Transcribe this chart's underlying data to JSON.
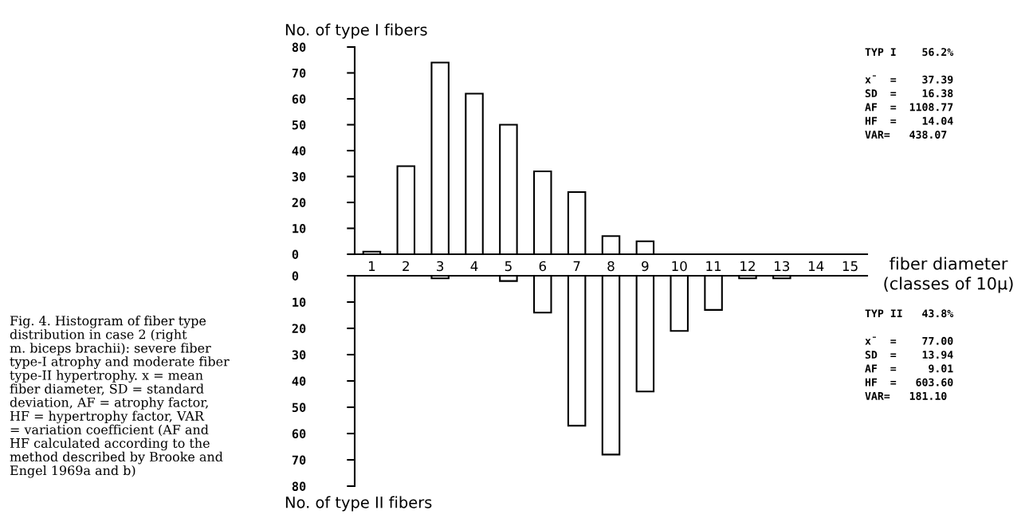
{
  "chart_data": [
    {
      "type": "bar",
      "ylabel": "No. of type I fibers",
      "xlabel": "fiber diameter\n(classes of 10μ)",
      "categories": [
        "1",
        "2",
        "3",
        "4",
        "5",
        "6",
        "7",
        "8",
        "9",
        "10",
        "11",
        "12",
        "13",
        "14",
        "15"
      ],
      "series": [
        {
          "color": "#ffffff",
          "values": [
            1,
            34,
            74,
            62,
            50,
            32,
            24,
            7,
            5,
            0,
            0,
            0,
            0,
            0,
            0
          ]
        }
      ],
      "ylim": [
        0,
        80
      ],
      "yticks": [
        0,
        10,
        20,
        30,
        40,
        50,
        60,
        70,
        80
      ],
      "grid": false,
      "legend": false,
      "annotations": [
        "TYP I    56.2%\n\nx̄  =    37.39\nSD  =    16.38\nAF  =  1108.77\nHF  =    14.04\nVAR=   438.07",
        "Fig. 4. Histogram of fiber type\ndistribution in case 2 (right\nm. biceps brachii): severe fiber\ntype-I atrophy and moderate fiber\ntype-II hypertrophy. x = mean\nfiber diameter, SD = standard\ndeviation, AF = atrophy factor,\nHF = hypertrophy factor, VAR\n= variation coefficient (AF and\nHF calculated according to the\nmethod described by Brooke and\nEngel 1969a and b)"
      ]
    },
    {
      "type": "bar",
      "ylabel": "No. of type II fibers",
      "categories": [
        "1",
        "2",
        "3",
        "4",
        "5",
        "6",
        "7",
        "8",
        "9",
        "10",
        "11",
        "12",
        "13",
        "14",
        "15"
      ],
      "series": [
        {
          "color": "#ffffff",
          "values": [
            0,
            0,
            1,
            0,
            2,
            14,
            57,
            68,
            44,
            21,
            13,
            1,
            1,
            0,
            0
          ]
        }
      ],
      "ylim": [
        80,
        0
      ],
      "yticks": [
        0,
        10,
        20,
        30,
        40,
        50,
        60,
        70,
        80
      ],
      "tick_labels": "y",
      "grid": false,
      "legend": false,
      "annotations": [
        "TYP II   43.8%\n\nx̄  =    77.00\nSD  =    13.94\nAF  =     9.01\nHF  =   603.60\nVAR=   181.10"
      ]
    }
  ]
}
